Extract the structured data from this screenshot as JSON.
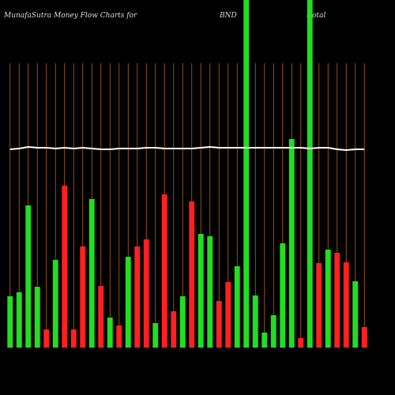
{
  "chart_data": {
    "type": "bar",
    "title": "MunafaSutra  Money Flow  Charts for",
    "ticker": "BND",
    "subtitle": "(total",
    "categories": [
      null,
      null,
      null,
      null,
      null,
      null,
      null,
      null,
      null,
      null,
      null,
      null,
      null,
      null,
      null,
      null,
      null,
      null,
      null,
      null,
      null,
      null,
      null,
      null,
      null,
      null,
      null,
      null,
      null,
      null,
      null,
      null,
      null,
      null,
      null,
      null,
      null,
      null,
      null,
      null
    ],
    "values": [
      65,
      70,
      180,
      77,
      23,
      111,
      205,
      23,
      128,
      188,
      78,
      38,
      28,
      115,
      128,
      137,
      31,
      194,
      46,
      65,
      185,
      144,
      141,
      59,
      83,
      103,
      440,
      66,
      19,
      41,
      132,
      264,
      12,
      440,
      107,
      124,
      120,
      108,
      84,
      26
    ],
    "colors": [
      "#22dd22",
      "#22dd22",
      "#22dd22",
      "#22dd22",
      "#ff2020",
      "#22dd22",
      "#ff2020",
      "#ff2020",
      "#ff2020",
      "#22dd22",
      "#ff2020",
      "#22dd22",
      "#ff2020",
      "#22dd22",
      "#ff2020",
      "#ff2020",
      "#22dd22",
      "#ff2020",
      "#ff2020",
      "#22dd22",
      "#ff2020",
      "#22dd22",
      "#22dd22",
      "#ff2020",
      "#ff2020",
      "#22dd22",
      "#22dd22",
      "#22dd22",
      "#22dd22",
      "#22dd22",
      "#22dd22",
      "#22dd22",
      "#ff2020",
      "#22dd22",
      "#ff2020",
      "#22dd22",
      "#ff2020",
      "#ff2020",
      "#22dd22",
      "#ff2020"
    ],
    "line": {
      "color": "#ffffff",
      "values": [
        251,
        252,
        254,
        253,
        253,
        252,
        253,
        252,
        253,
        252,
        251,
        251,
        252,
        252,
        252,
        253,
        253,
        252,
        252,
        252,
        252,
        253,
        254,
        253,
        253,
        253,
        253,
        253,
        253,
        253,
        253,
        253,
        253,
        252,
        253,
        253,
        251,
        250,
        251,
        251
      ]
    },
    "ylim": [
      0,
      440
    ],
    "grid": true,
    "grid_color": "#b5651d"
  }
}
